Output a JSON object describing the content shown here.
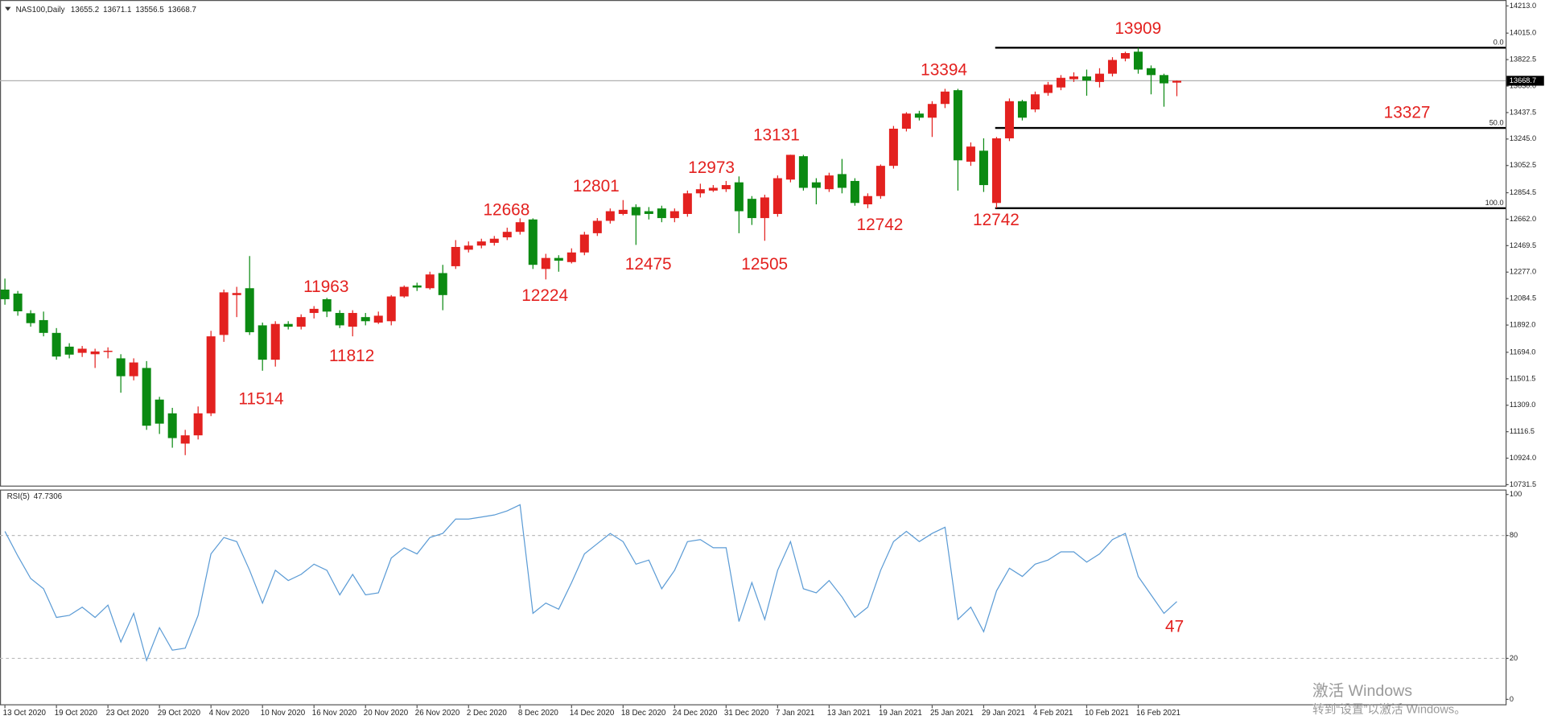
{
  "chart_data": [
    {
      "type": "candlestick",
      "title": "NAS100,Daily",
      "categories": [
        "13 Oct 2020",
        null,
        null,
        null,
        "19 Oct 2020",
        null,
        null,
        null,
        "23 Oct 2020",
        null,
        null,
        null,
        "29 Oct 2020",
        null,
        null,
        null,
        "4 Nov 2020",
        null,
        null,
        null,
        "10 Nov 2020",
        null,
        null,
        null,
        "16 Nov 2020",
        null,
        null,
        null,
        "20 Nov 2020",
        null,
        null,
        null,
        "26 Nov 2020",
        null,
        null,
        null,
        "2 Dec 2020",
        null,
        null,
        null,
        "8 Dec 2020",
        null,
        null,
        null,
        "14 Dec 2020",
        null,
        null,
        null,
        "18 Dec 2020",
        null,
        null,
        null,
        "24 Dec 2020",
        null,
        null,
        null,
        "31 Dec 2020",
        null,
        null,
        null,
        "7 Jan 2021",
        null,
        null,
        null,
        "13 Jan 2021",
        null,
        null,
        null,
        "19 Jan 2021",
        null,
        null,
        null,
        "25 Jan 2021",
        null,
        null,
        null,
        "29 Jan 2021",
        null,
        null,
        null,
        "4 Feb 2021",
        null,
        null,
        null,
        "10 Feb 2021",
        null,
        null,
        null,
        "16 Feb 2021",
        null,
        null,
        null
      ],
      "open": [
        12150,
        12121,
        11978,
        11928,
        11835,
        11735,
        11690,
        11680,
        11700,
        11650,
        11520,
        11580,
        11350,
        11250,
        11030,
        11090,
        11250,
        11820,
        12110,
        12160,
        11890,
        11640,
        11900,
        11880,
        11980,
        12080,
        11980,
        11880,
        11950,
        11910,
        11920,
        12100,
        12180,
        12160,
        12270,
        12320,
        12440,
        12470,
        12490,
        12530,
        12570,
        12660,
        12300,
        12380,
        12350,
        12420,
        12560,
        12650,
        12700,
        12750,
        12720,
        12740,
        12670,
        12700,
        12850,
        12870,
        12880,
        12930,
        12810,
        12670,
        12700,
        12950,
        13120,
        12930,
        12880,
        12990,
        12940,
        12770,
        12830,
        13050,
        13320,
        13430,
        13400,
        13500,
        13600,
        13080,
        13160,
        12780,
        13250,
        13520,
        13460,
        13580,
        13620,
        13680,
        13700,
        13660,
        13720,
        13830,
        13880,
        13760,
        13710,
        13655.2
      ],
      "high": [
        12230,
        12140,
        12000,
        11990,
        11870,
        11760,
        11740,
        11720,
        11730,
        11680,
        11650,
        11630,
        11370,
        11290,
        11130,
        11300,
        11850,
        12150,
        12170,
        12394,
        11910,
        11920,
        11920,
        11970,
        12030,
        12090,
        12000,
        12000,
        11980,
        11990,
        12110,
        12180,
        12200,
        12280,
        12330,
        12510,
        12500,
        12520,
        12540,
        12600,
        12668,
        12668,
        12410,
        12400,
        12450,
        12570,
        12670,
        12740,
        12801,
        12770,
        12750,
        12760,
        12740,
        12870,
        12920,
        12910,
        12940,
        12973,
        12830,
        12840,
        12980,
        13131,
        13130,
        12960,
        13000,
        13100,
        12960,
        12850,
        13060,
        13340,
        13440,
        13450,
        13520,
        13610,
        13610,
        13220,
        13250,
        13260,
        13540,
        13530,
        13590,
        13660,
        13710,
        13730,
        13750,
        13760,
        13840,
        13880,
        13909,
        13780,
        13720,
        13671.1
      ],
      "low": [
        12040,
        11960,
        11880,
        11810,
        11640,
        11650,
        11660,
        11580,
        11650,
        11400,
        11490,
        11130,
        11100,
        11000,
        10946,
        11060,
        11230,
        11770,
        11950,
        11820,
        11560,
        11590,
        11860,
        11860,
        11940,
        11950,
        11870,
        11810,
        11890,
        11900,
        11890,
        12090,
        12140,
        12150,
        12000,
        12300,
        12420,
        12450,
        12470,
        12510,
        12550,
        12300,
        12224,
        12280,
        12340,
        12400,
        12540,
        12630,
        12690,
        12475,
        12660,
        12640,
        12640,
        12680,
        12820,
        12860,
        12860,
        12560,
        12620,
        12505,
        12680,
        12930,
        12870,
        12770,
        12860,
        12850,
        12760,
        12742,
        12810,
        13030,
        13300,
        13380,
        13260,
        13470,
        12870,
        13050,
        12860,
        12742,
        13230,
        13380,
        13440,
        13560,
        13600,
        13660,
        13560,
        13620,
        13700,
        13810,
        13720,
        13570,
        13480,
        13556.5
      ],
      "close": [
        12080,
        11992,
        11906,
        11835,
        11663,
        11677,
        11720,
        11700,
        11705,
        11520,
        11620,
        11160,
        11175,
        11070,
        11090,
        11250,
        11810,
        12130,
        12125,
        11840,
        11640,
        11900,
        11880,
        11950,
        12010,
        11990,
        11890,
        11980,
        11920,
        11960,
        12100,
        12170,
        12165,
        12260,
        12110,
        12460,
        12470,
        12500,
        12520,
        12570,
        12640,
        12330,
        12380,
        12360,
        12420,
        12550,
        12650,
        12720,
        12730,
        12690,
        12700,
        12670,
        12720,
        12850,
        12880,
        12890,
        12910,
        12720,
        12670,
        12820,
        12960,
        13130,
        12890,
        12890,
        12980,
        12890,
        12780,
        12830,
        13050,
        13320,
        13430,
        13400,
        13500,
        13590,
        13090,
        13190,
        12910,
        13250,
        13520,
        13400,
        13570,
        13640,
        13690,
        13700,
        13670,
        13720,
        13820,
        13870,
        13750,
        13710,
        13650,
        13668.7
      ],
      "up_color": "#e3211f",
      "down_color": "#0b8a12",
      "ylim": [
        10731.5,
        14213
      ],
      "yticks": [
        {
          "value": 14213,
          "label": "14213.0"
        },
        {
          "value": 14015,
          "label": "14015.0"
        },
        {
          "value": 13822.5,
          "label": "13822.5"
        },
        {
          "value": 13630,
          "label": "13630.0"
        },
        {
          "value": 13437.5,
          "label": "13437.5"
        },
        {
          "value": 13245,
          "label": "13245.0"
        },
        {
          "value": 13052.5,
          "label": "13052.5"
        },
        {
          "value": 12854.5,
          "label": "12854.5"
        },
        {
          "value": 12662,
          "label": "12662.0"
        },
        {
          "value": 12469.5,
          "label": "12469.5"
        },
        {
          "value": 12277,
          "label": "12277.0"
        },
        {
          "value": 12084.5,
          "label": "12084.5"
        },
        {
          "value": 11892,
          "label": "11892.0"
        },
        {
          "value": 11694,
          "label": "11694.0"
        },
        {
          "value": 11501.5,
          "label": "11501.5"
        },
        {
          "value": 11309,
          "label": "11309.0"
        },
        {
          "value": 11116.5,
          "label": "11116.5"
        },
        {
          "value": 10924,
          "label": "10924.0"
        },
        {
          "value": 10731.5,
          "label": "10731.5"
        }
      ],
      "fib_levels": [
        {
          "value": 13909,
          "label": "0.0"
        },
        {
          "value": 13325.5,
          "label": "50.0"
        },
        {
          "value": 12742,
          "label": "100.0"
        }
      ],
      "annotations": [
        "13909",
        "13394",
        "13327",
        "13131",
        "12973",
        "12801",
        "12668",
        "11963",
        "12475",
        "12505",
        "12742",
        "12742",
        "12224",
        "11812",
        "11514"
      ]
    },
    {
      "type": "line",
      "title": "RSI(5)",
      "color": "#5b9bd5",
      "values": [
        82,
        70,
        59,
        54,
        40,
        41,
        45,
        40,
        46,
        28,
        42,
        19,
        35,
        24,
        25,
        41,
        71,
        79,
        77,
        63,
        47,
        63,
        58,
        61,
        66,
        63,
        51,
        61,
        51,
        52,
        69,
        74,
        71,
        79,
        81,
        88,
        88,
        89,
        90,
        92,
        95,
        42,
        47,
        44,
        57,
        71,
        76,
        81,
        77,
        66,
        68,
        54,
        63,
        77,
        78,
        74,
        74,
        38,
        57,
        39,
        63,
        77,
        54,
        52,
        58,
        50,
        40,
        45,
        63,
        77,
        82,
        77,
        81,
        84,
        39,
        45,
        33,
        53,
        64,
        60,
        66,
        68,
        72,
        72,
        67,
        71,
        78,
        81,
        60,
        51,
        42,
        47.7306
      ],
      "ylim": [
        0,
        100
      ],
      "yticks": [
        0,
        20,
        80,
        100
      ],
      "levels": [
        20,
        80
      ],
      "annotations": [
        "47"
      ]
    }
  ],
  "watermark": [
    "激活 Windows",
    "转到“设置”以激活 Windows。"
  ]
}
